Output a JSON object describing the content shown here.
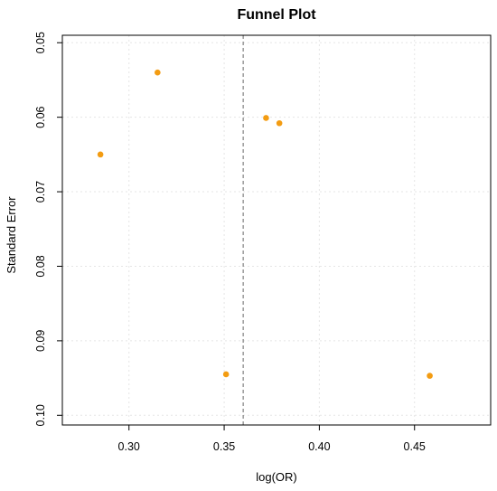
{
  "chart_data": {
    "type": "scatter",
    "title": "Funnel Plot",
    "xlabel": "log(OR)",
    "ylabel": "Standard Error",
    "xlim": [
      0.265,
      0.49
    ],
    "ylim": [
      0.049,
      0.1013
    ],
    "y_reversed": true,
    "x_ticks": [
      0.3,
      0.35,
      0.4,
      0.45
    ],
    "x_tick_labels": [
      "0.30",
      "0.35",
      "0.40",
      "0.45"
    ],
    "y_ticks": [
      0.05,
      0.06,
      0.07,
      0.08,
      0.09,
      0.1
    ],
    "y_tick_labels": [
      "0.05",
      "0.06",
      "0.07",
      "0.08",
      "0.09",
      "0.10"
    ],
    "points": [
      {
        "x": 0.315,
        "y": 0.054
      },
      {
        "x": 0.285,
        "y": 0.065
      },
      {
        "x": 0.372,
        "y": 0.0601
      },
      {
        "x": 0.379,
        "y": 0.0608
      },
      {
        "x": 0.351,
        "y": 0.0945
      },
      {
        "x": 0.458,
        "y": 0.0947
      }
    ],
    "reference_line_x": 0.36,
    "grid": true,
    "colors": {
      "points": "#F39C12",
      "reference_line": "#808080",
      "grid": "#E5E5E5",
      "axis": "#000000"
    }
  }
}
